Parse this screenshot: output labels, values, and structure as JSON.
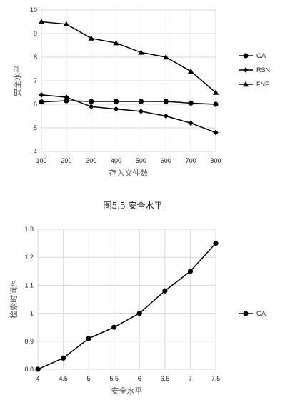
{
  "chart_data": [
    {
      "type": "line",
      "title": "",
      "xlabel": "存入文件数",
      "ylabel": "安全水平",
      "categories": [
        "100",
        "200",
        "300",
        "400",
        "500",
        "600",
        "700",
        "800"
      ],
      "ylim": [
        4,
        10
      ],
      "yticks": [
        "4",
        "5",
        "6",
        "7",
        "8",
        "9",
        "10"
      ],
      "grid": true,
      "legend": "right",
      "series": [
        {
          "name": "GA",
          "marker": "circle",
          "values": [
            6.1,
            6.15,
            6.12,
            6.12,
            6.12,
            6.12,
            6.05,
            6.0
          ]
        },
        {
          "name": "RSN",
          "marker": "diamond",
          "values": [
            6.4,
            6.3,
            5.9,
            5.8,
            5.7,
            5.5,
            5.2,
            4.8
          ]
        },
        {
          "name": "FNF",
          "marker": "triangle",
          "values": [
            9.5,
            9.4,
            8.8,
            8.6,
            8.2,
            8.0,
            7.4,
            6.5
          ]
        }
      ]
    },
    {
      "type": "line",
      "title": "",
      "xlabel": "安全水平",
      "ylabel": "检索时间/s",
      "categories": [
        "4",
        "4.5",
        "5",
        "5.5",
        "6",
        "6.5",
        "7",
        "7.5"
      ],
      "ylim": [
        0.8,
        1.3
      ],
      "yticks": [
        "0.8",
        "0.9",
        "1",
        "1.1",
        "1.2",
        "1.3"
      ],
      "grid": true,
      "legend": "right",
      "series": [
        {
          "name": "GA",
          "marker": "circle",
          "values": [
            0.8,
            0.84,
            0.91,
            0.95,
            1.0,
            1.08,
            1.15,
            1.25
          ]
        }
      ]
    }
  ],
  "caption": "图5.5 安全水平"
}
